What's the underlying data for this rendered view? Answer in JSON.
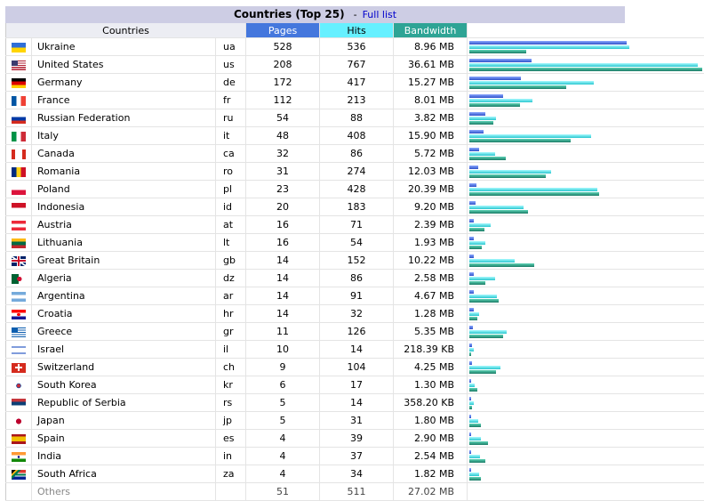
{
  "header": {
    "title": "Countries (Top 25)",
    "separator": "-",
    "full_list_link": "Full list"
  },
  "columns": {
    "countries": "Countries",
    "pages": "Pages",
    "hits": "Hits",
    "bandwidth": "Bandwidth"
  },
  "rows": [
    {
      "flag": "flag-ua-icon",
      "name": "Ukraine",
      "code": "ua",
      "pages": "528",
      "hits": "536",
      "bandwidth": "8.96 MB",
      "pages_frac": 0.6762,
      "hits_frac": 0.6862,
      "bw_frac": 0.2447
    },
    {
      "flag": "flag-us-icon",
      "name": "United States",
      "code": "us",
      "pages": "208",
      "hits": "767",
      "bandwidth": "36.61 MB",
      "pages_frac": 0.2664,
      "hits_frac": 0.982,
      "bw_frac": 1.0
    },
    {
      "flag": "flag-de-icon",
      "name": "Germany",
      "code": "de",
      "pages": "172",
      "hits": "417",
      "bandwidth": "15.27 MB",
      "pages_frac": 0.2202,
      "hits_frac": 0.5339,
      "bw_frac": 0.4171
    },
    {
      "flag": "flag-fr-icon",
      "name": "France",
      "code": "fr",
      "pages": "112",
      "hits": "213",
      "bandwidth": "8.01 MB",
      "pages_frac": 0.1434,
      "hits_frac": 0.2727,
      "bw_frac": 0.2188
    },
    {
      "flag": "flag-ru-icon",
      "name": "Russian Federation",
      "code": "ru",
      "pages": "54",
      "hits": "88",
      "bandwidth": "3.82 MB",
      "pages_frac": 0.0691,
      "hits_frac": 0.1127,
      "bw_frac": 0.1043
    },
    {
      "flag": "flag-it-icon",
      "name": "Italy",
      "code": "it",
      "pages": "48",
      "hits": "408",
      "bandwidth": "15.90 MB",
      "pages_frac": 0.0615,
      "hits_frac": 0.5224,
      "bw_frac": 0.4343
    },
    {
      "flag": "flag-ca-icon",
      "name": "Canada",
      "code": "ca",
      "pages": "32",
      "hits": "86",
      "bandwidth": "5.72 MB",
      "pages_frac": 0.041,
      "hits_frac": 0.1101,
      "bw_frac": 0.1562
    },
    {
      "flag": "flag-ro-icon",
      "name": "Romania",
      "code": "ro",
      "pages": "31",
      "hits": "274",
      "bandwidth": "12.03 MB",
      "pages_frac": 0.0397,
      "hits_frac": 0.3508,
      "bw_frac": 0.3286
    },
    {
      "flag": "flag-pl-icon",
      "name": "Poland",
      "code": "pl",
      "pages": "23",
      "hits": "428",
      "bandwidth": "20.39 MB",
      "pages_frac": 0.0294,
      "hits_frac": 0.548,
      "bw_frac": 0.557
    },
    {
      "flag": "flag-id-icon",
      "name": "Indonesia",
      "code": "id",
      "pages": "20",
      "hits": "183",
      "bandwidth": "9.20 MB",
      "pages_frac": 0.0256,
      "hits_frac": 0.2343,
      "bw_frac": 0.2513
    },
    {
      "flag": "flag-at-icon",
      "name": "Austria",
      "code": "at",
      "pages": "16",
      "hits": "71",
      "bandwidth": "2.39 MB",
      "pages_frac": 0.0205,
      "hits_frac": 0.0909,
      "bw_frac": 0.0653
    },
    {
      "flag": "flag-lt-icon",
      "name": "Lithuania",
      "code": "lt",
      "pages": "16",
      "hits": "54",
      "bandwidth": "1.93 MB",
      "pages_frac": 0.0205,
      "hits_frac": 0.0691,
      "bw_frac": 0.0527
    },
    {
      "flag": "flag-gb-icon",
      "name": "Great Britain",
      "code": "gb",
      "pages": "14",
      "hits": "152",
      "bandwidth": "10.22 MB",
      "pages_frac": 0.0179,
      "hits_frac": 0.1946,
      "bw_frac": 0.2792
    },
    {
      "flag": "flag-dz-icon",
      "name": "Algeria",
      "code": "dz",
      "pages": "14",
      "hits": "86",
      "bandwidth": "2.58 MB",
      "pages_frac": 0.0179,
      "hits_frac": 0.1101,
      "bw_frac": 0.0705
    },
    {
      "flag": "flag-ar-icon",
      "name": "Argentina",
      "code": "ar",
      "pages": "14",
      "hits": "91",
      "bandwidth": "4.67 MB",
      "pages_frac": 0.0179,
      "hits_frac": 0.1165,
      "bw_frac": 0.1276
    },
    {
      "flag": "flag-hr-icon",
      "name": "Croatia",
      "code": "hr",
      "pages": "14",
      "hits": "32",
      "bandwidth": "1.28 MB",
      "pages_frac": 0.0179,
      "hits_frac": 0.041,
      "bw_frac": 0.035
    },
    {
      "flag": "flag-gr-icon",
      "name": "Greece",
      "code": "gr",
      "pages": "11",
      "hits": "126",
      "bandwidth": "5.35 MB",
      "pages_frac": 0.0141,
      "hits_frac": 0.1613,
      "bw_frac": 0.1461
    },
    {
      "flag": "flag-il-icon",
      "name": "Israel",
      "code": "il",
      "pages": "10",
      "hits": "14",
      "bandwidth": "218.39 KB",
      "pages_frac": 0.0128,
      "hits_frac": 0.0179,
      "bw_frac": 0.0058
    },
    {
      "flag": "flag-ch-icon",
      "name": "Switzerland",
      "code": "ch",
      "pages": "9",
      "hits": "104",
      "bandwidth": "4.25 MB",
      "pages_frac": 0.0115,
      "hits_frac": 0.1332,
      "bw_frac": 0.1161
    },
    {
      "flag": "flag-kr-icon",
      "name": "South Korea",
      "code": "kr",
      "pages": "6",
      "hits": "17",
      "bandwidth": "1.30 MB",
      "pages_frac": 0.0077,
      "hits_frac": 0.0218,
      "bw_frac": 0.0355
    },
    {
      "flag": "flag-rs-icon",
      "name": "Republic of Serbia",
      "code": "rs",
      "pages": "5",
      "hits": "14",
      "bandwidth": "358.20 KB",
      "pages_frac": 0.0064,
      "hits_frac": 0.0179,
      "bw_frac": 0.0096
    },
    {
      "flag": "flag-jp-icon",
      "name": "Japan",
      "code": "jp",
      "pages": "5",
      "hits": "31",
      "bandwidth": "1.80 MB",
      "pages_frac": 0.0064,
      "hits_frac": 0.0397,
      "bw_frac": 0.0492
    },
    {
      "flag": "flag-es-icon",
      "name": "Spain",
      "code": "es",
      "pages": "4",
      "hits": "39",
      "bandwidth": "2.90 MB",
      "pages_frac": 0.0051,
      "hits_frac": 0.0499,
      "bw_frac": 0.0792
    },
    {
      "flag": "flag-in-icon",
      "name": "India",
      "code": "in",
      "pages": "4",
      "hits": "37",
      "bandwidth": "2.54 MB",
      "pages_frac": 0.0051,
      "hits_frac": 0.0474,
      "bw_frac": 0.0694
    },
    {
      "flag": "flag-za-icon",
      "name": "South Africa",
      "code": "za",
      "pages": "4",
      "hits": "34",
      "bandwidth": "1.82 MB",
      "pages_frac": 0.0051,
      "hits_frac": 0.0435,
      "bw_frac": 0.0497
    }
  ],
  "others": {
    "name": "Others",
    "pages": "51",
    "hits": "511",
    "bandwidth": "27.02 MB"
  },
  "colors": {
    "header_bg": "#cdcde4",
    "pages": "#4477dd",
    "hits": "#66f0ff",
    "bandwidth": "#2ea495",
    "link": "#0000cc"
  }
}
